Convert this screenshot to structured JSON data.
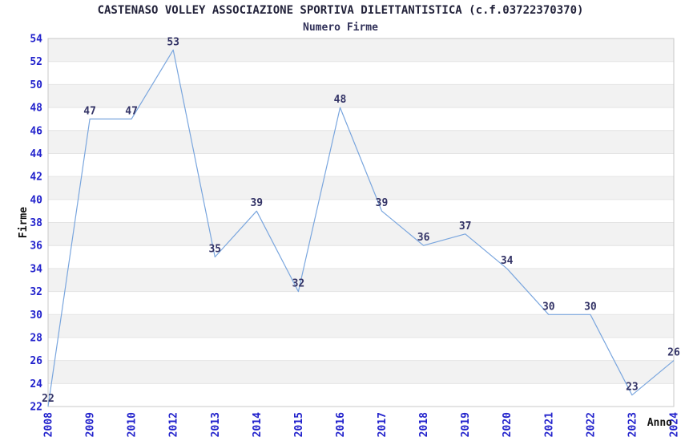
{
  "chart_data": {
    "type": "line",
    "title": "CASTENASO VOLLEY ASSOCIAZIONE SPORTIVA DILETTANTISTICA (c.f.03722370370)",
    "subtitle": "Numero Firme",
    "categories": [
      "2008",
      "2009",
      "2010",
      "2012",
      "2013",
      "2014",
      "2015",
      "2016",
      "2017",
      "2018",
      "2019",
      "2020",
      "2021",
      "2022",
      "2023",
      "2024"
    ],
    "values": [
      22,
      47,
      47,
      53,
      35,
      39,
      32,
      48,
      39,
      36,
      37,
      34,
      30,
      30,
      23,
      26
    ],
    "data_labels": [
      "22",
      "47",
      "47",
      "53",
      "35",
      "39",
      "32",
      "48",
      "39",
      "36",
      "37",
      "34",
      "30",
      "30",
      "23",
      "26"
    ],
    "xlabel": "Anno",
    "ylabel": "Firme",
    "ylim": [
      22,
      54
    ],
    "ytick_step": 2,
    "yticks": [
      22,
      24,
      26,
      28,
      30,
      32,
      34,
      36,
      38,
      40,
      42,
      44,
      46,
      48,
      50,
      52,
      54
    ],
    "legend": "none",
    "grid": "horizontal-bands-alternating",
    "colors": {
      "line": "#7aa6de",
      "tick_label": "#2222cc",
      "data_label": "#333366",
      "band_gray": "#f2f2f2",
      "band_white": "#ffffff",
      "band_edge": "#e4e4e4",
      "plot_border": "#c8c8c8",
      "axis_title": "#111111",
      "title": "#22223a",
      "subtitle": "#32325a",
      "background": "#ffffff"
    }
  }
}
